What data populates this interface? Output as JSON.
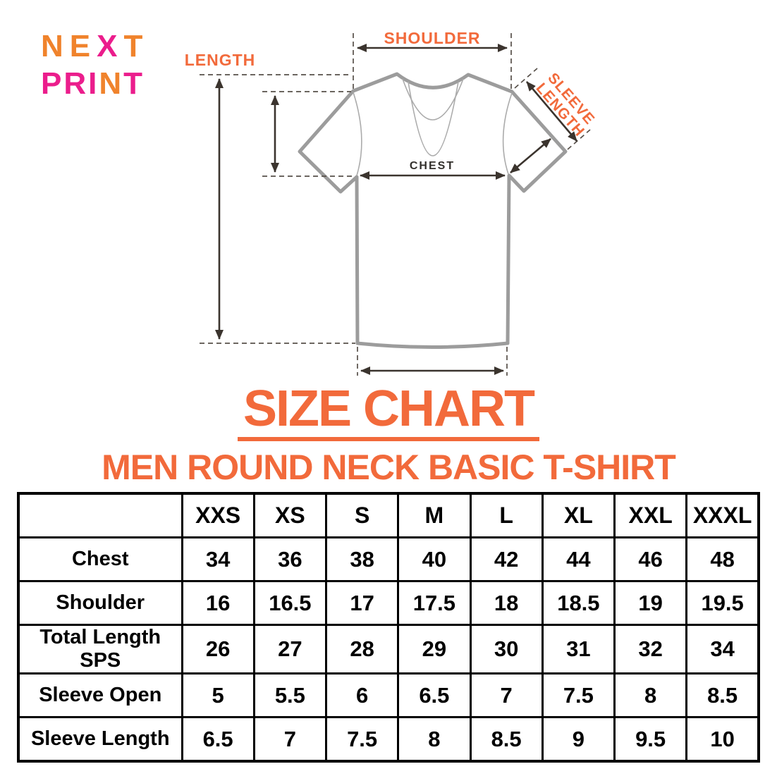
{
  "colors": {
    "accent_orange": "#F26A3B",
    "logo_orange": "#F0832C",
    "logo_pink": "#EB1D8C",
    "shirt_gray": "#9C9C9C",
    "guide_dark": "#57504A",
    "arrow_dark": "#3B342E",
    "table_border": "#000000",
    "background": "#FFFFFF"
  },
  "logo": {
    "line1": [
      {
        "ch": "N",
        "c": "orange"
      },
      {
        "ch": "E",
        "c": "orange"
      },
      {
        "ch": "X",
        "c": "pink"
      },
      {
        "ch": "T",
        "c": "orange"
      }
    ],
    "line2": [
      {
        "ch": "P",
        "c": "pink"
      },
      {
        "ch": "R",
        "c": "pink"
      },
      {
        "ch": "I",
        "c": "pink"
      },
      {
        "ch": "N",
        "c": "orange"
      },
      {
        "ch": "T",
        "c": "pink"
      }
    ]
  },
  "diagram": {
    "labels": {
      "shoulder": "SHOULDER",
      "length": "LENGTH",
      "sleeve_line1": "SLEEVE",
      "sleeve_line2": "LENGTH",
      "chest": "CHEST"
    }
  },
  "title": "SIZE CHART",
  "subtitle": "MEN ROUND NECK BASIC T-SHIRT",
  "table": {
    "columns": [
      "",
      "XXS",
      "XS",
      "S",
      "M",
      "L",
      "XL",
      "XXL",
      "XXXL"
    ],
    "rows": [
      {
        "label": "Chest",
        "values": [
          "34",
          "36",
          "38",
          "40",
          "42",
          "44",
          "46",
          "48"
        ]
      },
      {
        "label": "Shoulder",
        "values": [
          "16",
          "16.5",
          "17",
          "17.5",
          "18",
          "18.5",
          "19",
          "19.5"
        ]
      },
      {
        "label": "Total Length SPS",
        "values": [
          "26",
          "27",
          "28",
          "29",
          "30",
          "31",
          "32",
          "34"
        ]
      },
      {
        "label": "Sleeve Open",
        "values": [
          "5",
          "5.5",
          "6",
          "6.5",
          "7",
          "7.5",
          "8",
          "8.5"
        ]
      },
      {
        "label": "Sleeve Length",
        "values": [
          "6.5",
          "7",
          "7.5",
          "8",
          "8.5",
          "9",
          "9.5",
          "10"
        ]
      }
    ]
  }
}
